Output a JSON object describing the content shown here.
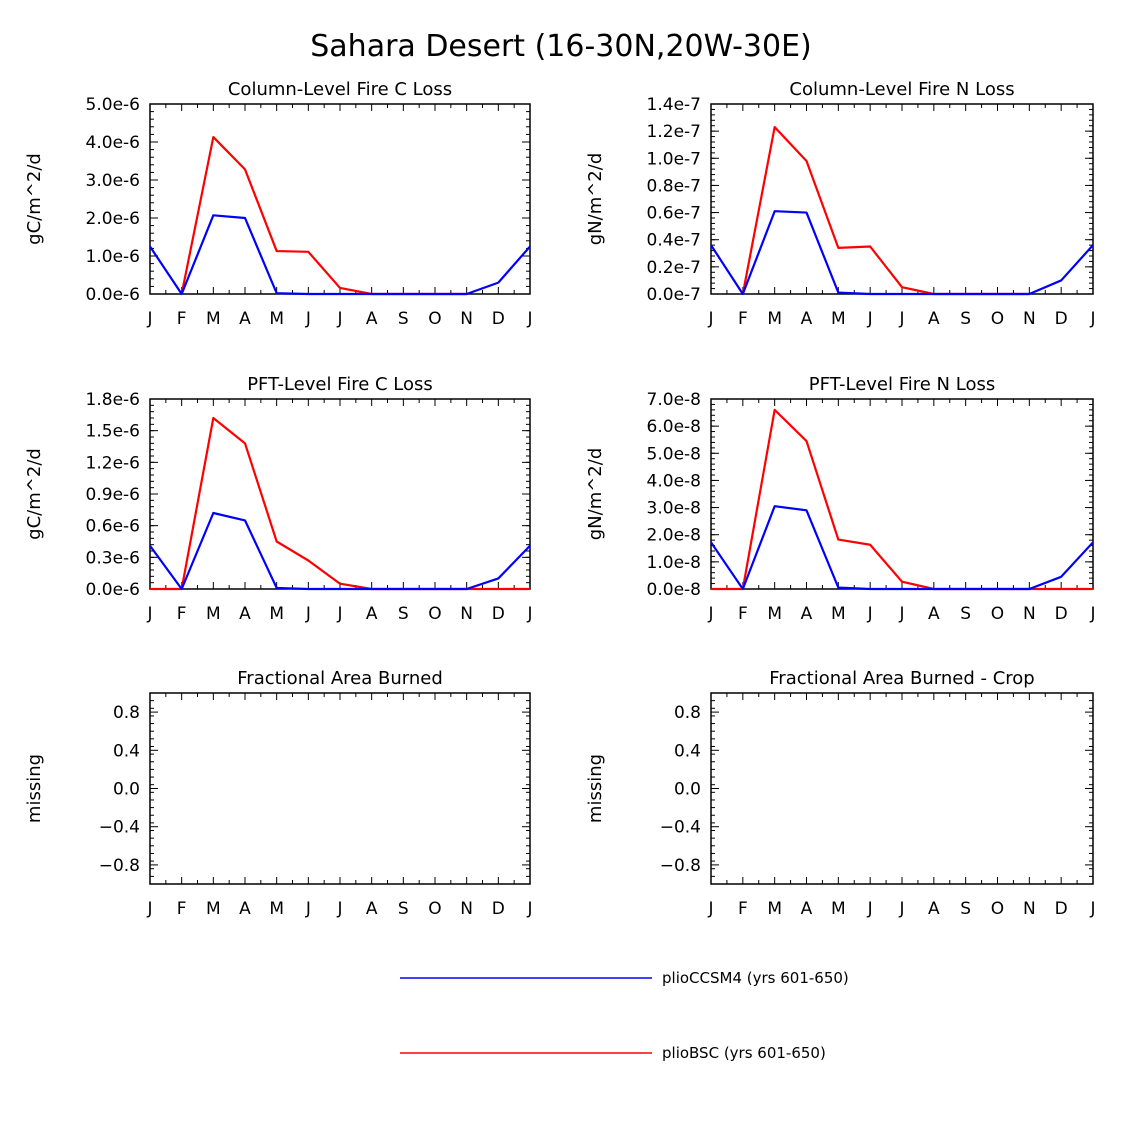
{
  "figure": {
    "title": "Sahara Desert (16-30N,20W-30E)"
  },
  "legend": {
    "entries": [
      {
        "label": "plioCCSM4 (yrs 601-650)",
        "color": "#0000ff"
      },
      {
        "label": "plioBSC (yrs 601-650)",
        "color": "#ff0000"
      }
    ]
  },
  "chart_data": [
    {
      "type": "line",
      "title": "Column-Level Fire C Loss",
      "ylabel": "gC/m^2/d",
      "categories": [
        "J",
        "F",
        "M",
        "A",
        "M",
        "J",
        "J",
        "A",
        "S",
        "O",
        "N",
        "D",
        "J"
      ],
      "ylim": [
        0,
        5e-06
      ],
      "yticks": [
        0,
        1e-06,
        2e-06,
        3e-06,
        4e-06,
        5e-06
      ],
      "ytick_labels": [
        "0.0e-6",
        "1.0e-6",
        "2.0e-6",
        "3.0e-6",
        "4.0e-6",
        "5.0e-6"
      ],
      "series": [
        {
          "name": "plioCCSM4 (yrs 601-650)",
          "color": "#0000ff",
          "values": [
            1.25e-06,
            0,
            2.07e-06,
            2e-06,
            2e-08,
            0,
            0,
            0,
            0,
            0,
            0,
            3e-07,
            1.25e-06
          ]
        },
        {
          "name": "plioBSC (yrs 601-650)",
          "color": "#ff0000",
          "values": [
            null,
            0,
            4.13e-06,
            3.28e-06,
            1.13e-06,
            1.11e-06,
            1.6e-07,
            0,
            0,
            0,
            0,
            null,
            null
          ]
        }
      ]
    },
    {
      "type": "line",
      "title": "Column-Level Fire N Loss",
      "ylabel": "gN/m^2/d",
      "categories": [
        "J",
        "F",
        "M",
        "A",
        "M",
        "J",
        "J",
        "A",
        "S",
        "O",
        "N",
        "D",
        "J"
      ],
      "ylim": [
        0,
        1.4e-07
      ],
      "yticks": [
        0,
        2e-08,
        4e-08,
        6e-08,
        8e-08,
        1e-07,
        1.2e-07,
        1.4e-07
      ],
      "ytick_labels": [
        "0.0e-7",
        "0.2e-7",
        "0.4e-7",
        "0.6e-7",
        "0.8e-7",
        "1.0e-7",
        "1.2e-7",
        "1.4e-7"
      ],
      "series": [
        {
          "name": "plioCCSM4 (yrs 601-650)",
          "color": "#0000ff",
          "values": [
            3.6e-08,
            0,
            6.1e-08,
            6e-08,
            1e-09,
            0,
            0,
            0,
            0,
            0,
            0,
            1e-08,
            3.6e-08
          ]
        },
        {
          "name": "plioBSC (yrs 601-650)",
          "color": "#ff0000",
          "values": [
            null,
            0,
            1.23e-07,
            9.8e-08,
            3.4e-08,
            3.5e-08,
            5e-09,
            0,
            0,
            0,
            0,
            null,
            null
          ]
        }
      ]
    },
    {
      "type": "line",
      "title": "PFT-Level Fire C Loss",
      "ylabel": "gC/m^2/d",
      "categories": [
        "J",
        "F",
        "M",
        "A",
        "M",
        "J",
        "J",
        "A",
        "S",
        "O",
        "N",
        "D",
        "J"
      ],
      "ylim": [
        0,
        1.8e-06
      ],
      "yticks": [
        0,
        3e-07,
        6e-07,
        9e-07,
        1.2e-06,
        1.5e-06,
        1.8e-06
      ],
      "ytick_labels": [
        "0.0e-6",
        "0.3e-6",
        "0.6e-6",
        "0.9e-6",
        "1.2e-6",
        "1.5e-6",
        "1.8e-6"
      ],
      "series": [
        {
          "name": "plioCCSM4 (yrs 601-650)",
          "color": "#0000ff",
          "values": [
            4.1e-07,
            0,
            7.2e-07,
            6.5e-07,
            1e-08,
            0,
            0,
            0,
            0,
            0,
            0,
            1e-07,
            4.1e-07
          ]
        },
        {
          "name": "plioBSC (yrs 601-650)",
          "color": "#ff0000",
          "values": [
            0,
            0,
            1.62e-06,
            1.38e-06,
            4.5e-07,
            2.7e-07,
            5e-08,
            0,
            0,
            0,
            0,
            0,
            0
          ]
        }
      ]
    },
    {
      "type": "line",
      "title": "PFT-Level Fire N Loss",
      "ylabel": "gN/m^2/d",
      "categories": [
        "J",
        "F",
        "M",
        "A",
        "M",
        "J",
        "J",
        "A",
        "S",
        "O",
        "N",
        "D",
        "J"
      ],
      "ylim": [
        0,
        7e-08
      ],
      "yticks": [
        0,
        1e-08,
        2e-08,
        3e-08,
        4e-08,
        5e-08,
        6e-08,
        7e-08
      ],
      "ytick_labels": [
        "0.0e-8",
        "1.0e-8",
        "2.0e-8",
        "3.0e-8",
        "4.0e-8",
        "5.0e-8",
        "6.0e-8",
        "7.0e-8"
      ],
      "series": [
        {
          "name": "plioCCSM4 (yrs 601-650)",
          "color": "#0000ff",
          "values": [
            1.72e-08,
            0,
            3.05e-08,
            2.9e-08,
            5e-10,
            0,
            0,
            0,
            0,
            0,
            0,
            4.5e-09,
            1.72e-08
          ]
        },
        {
          "name": "plioBSC (yrs 601-650)",
          "color": "#ff0000",
          "values": [
            0,
            0,
            6.6e-08,
            5.45e-08,
            1.82e-08,
            1.63e-08,
            2.7e-09,
            0,
            0,
            0,
            0,
            0,
            0
          ]
        }
      ]
    },
    {
      "type": "line",
      "title": "Fractional Area Burned",
      "ylabel": "missing",
      "categories": [
        "J",
        "F",
        "M",
        "A",
        "M",
        "J",
        "J",
        "A",
        "S",
        "O",
        "N",
        "D",
        "J"
      ],
      "ylim": [
        -1.0,
        1.0
      ],
      "yticks": [
        -0.8,
        -0.4,
        0.0,
        0.4,
        0.8
      ],
      "ytick_labels": [
        "−0.8",
        "−0.4",
        "0.0",
        "0.4",
        "0.8"
      ],
      "series": []
    },
    {
      "type": "line",
      "title": "Fractional Area Burned - Crop",
      "ylabel": "missing",
      "categories": [
        "J",
        "F",
        "M",
        "A",
        "M",
        "J",
        "J",
        "A",
        "S",
        "O",
        "N",
        "D",
        "J"
      ],
      "ylim": [
        -1.0,
        1.0
      ],
      "yticks": [
        -0.8,
        -0.4,
        0.0,
        0.4,
        0.8
      ],
      "ytick_labels": [
        "−0.8",
        "−0.4",
        "0.0",
        "0.4",
        "0.8"
      ],
      "series": []
    }
  ]
}
